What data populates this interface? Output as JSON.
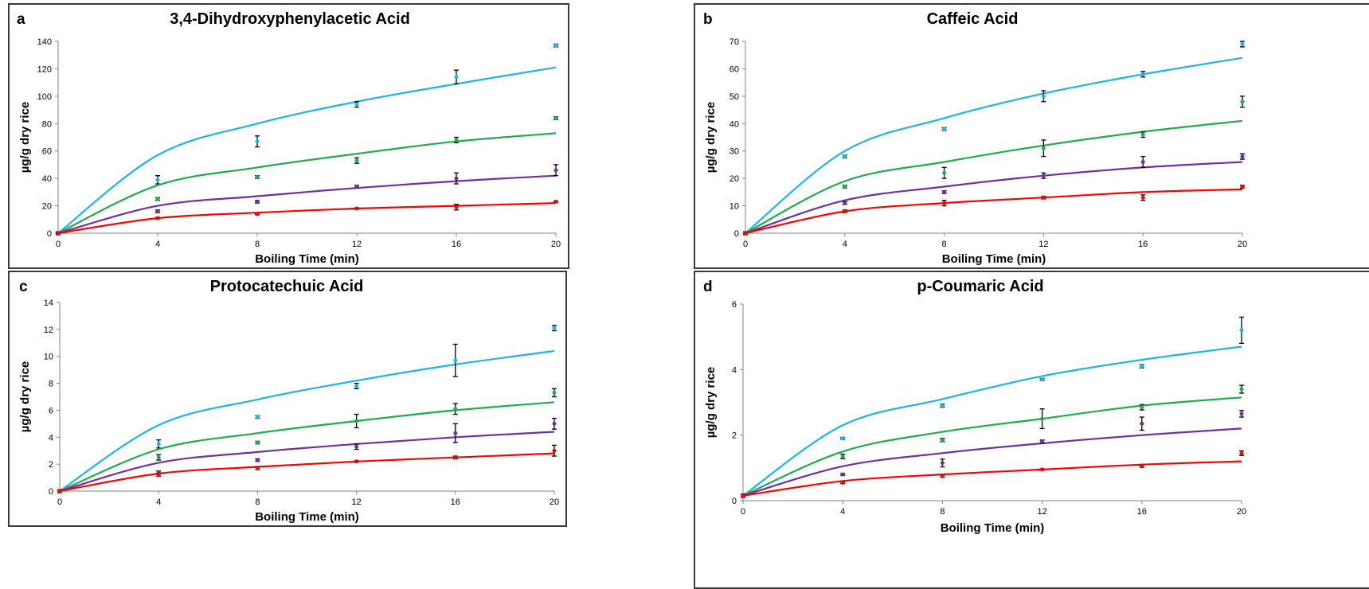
{
  "colors": {
    "blue": "#1fb4e6",
    "green": "#1fac4c",
    "purple": "#7030a0",
    "red": "#ff0000",
    "errorbar": "#000000"
  },
  "chart_data": [
    {
      "type": "line",
      "panel_letter": "a",
      "title": "3,4-Dihydroxyphenylacetic Acid",
      "xlabel": "Boiling Time (min)",
      "ylabel": "µg/g dry rice",
      "xlim": [
        0,
        20
      ],
      "ylim": [
        0,
        140
      ],
      "xticks": [
        0,
        4,
        8,
        12,
        16,
        20
      ],
      "yticks": [
        0,
        20,
        40,
        60,
        80,
        100,
        120,
        140
      ],
      "x": [
        0,
        4,
        8,
        12,
        16,
        20
      ],
      "series": [
        {
          "color": "blue",
          "points": [
            0,
            39,
            67,
            94,
            114,
            137
          ],
          "errors": [
            1,
            3,
            4,
            2,
            5,
            1
          ],
          "fit": [
            0,
            57,
            80,
            96,
            109,
            121
          ]
        },
        {
          "color": "green",
          "points": [
            0,
            25,
            41,
            53,
            68,
            84
          ],
          "errors": [
            1,
            1,
            1,
            2,
            2,
            1
          ],
          "fit": [
            0,
            35,
            48,
            58,
            67,
            73
          ]
        },
        {
          "color": "purple",
          "points": [
            0,
            16,
            23,
            34,
            40,
            46
          ],
          "errors": [
            1,
            1,
            1,
            1,
            4,
            4
          ],
          "fit": [
            0,
            20,
            27,
            33,
            38,
            42
          ]
        },
        {
          "color": "red",
          "points": [
            0,
            11,
            14,
            18,
            19,
            23
          ],
          "errors": [
            0.5,
            0.5,
            0.5,
            0.5,
            2,
            0.5
          ],
          "fit": [
            0,
            11,
            15,
            18,
            20,
            22
          ]
        }
      ]
    },
    {
      "type": "line",
      "panel_letter": "b",
      "title": "Caffeic Acid",
      "xlabel": "Boiling Time (min)",
      "ylabel": "µg/g dry rice",
      "xlim": [
        0,
        20
      ],
      "ylim": [
        0,
        70
      ],
      "xticks": [
        0,
        4,
        8,
        12,
        16,
        20
      ],
      "yticks": [
        0,
        10,
        20,
        30,
        40,
        50,
        60,
        70
      ],
      "x": [
        0,
        4,
        8,
        12,
        16,
        20
      ],
      "series": [
        {
          "color": "blue",
          "points": [
            0,
            28,
            38,
            50,
            58,
            69
          ],
          "errors": [
            0.5,
            0.5,
            0.5,
            2,
            1,
            1
          ],
          "fit": [
            0,
            30,
            42,
            51,
            58,
            64
          ]
        },
        {
          "color": "green",
          "points": [
            0,
            17,
            22,
            31,
            36,
            48
          ],
          "errors": [
            0.5,
            0.5,
            2,
            3,
            1,
            2
          ],
          "fit": [
            0,
            19,
            26,
            32,
            37,
            41
          ]
        },
        {
          "color": "purple",
          "points": [
            0,
            11,
            15,
            21,
            26,
            28
          ],
          "errors": [
            0.5,
            0.5,
            0.5,
            1,
            2,
            1
          ],
          "fit": [
            0,
            12,
            17,
            21,
            24,
            26
          ]
        },
        {
          "color": "red",
          "points": [
            0,
            8,
            11,
            13,
            13,
            17
          ],
          "errors": [
            0.5,
            0.5,
            1,
            0.5,
            1,
            0.5
          ],
          "fit": [
            0,
            8,
            11,
            13,
            15,
            16
          ]
        }
      ]
    },
    {
      "type": "line",
      "panel_letter": "c",
      "title": "Protocatechuic Acid",
      "xlabel": "Boiling Time (min)",
      "ylabel": "µg/g dry rice",
      "xlim": [
        0,
        20
      ],
      "ylim": [
        0,
        14
      ],
      "xticks": [
        0,
        4,
        8,
        12,
        16,
        20
      ],
      "yticks": [
        0,
        2,
        4,
        6,
        8,
        10,
        12,
        14
      ],
      "x": [
        0,
        4,
        8,
        12,
        16,
        20
      ],
      "series": [
        {
          "color": "blue",
          "points": [
            0,
            3.5,
            5.5,
            7.8,
            9.7,
            12.1
          ],
          "errors": [
            0.1,
            0.3,
            0.1,
            0.2,
            1.2,
            0.2
          ],
          "fit": [
            0,
            4.9,
            6.8,
            8.2,
            9.4,
            10.4
          ]
        },
        {
          "color": "green",
          "points": [
            0,
            2.5,
            3.6,
            5.2,
            6.1,
            7.3
          ],
          "errors": [
            0.1,
            0.2,
            0.1,
            0.5,
            0.4,
            0.3
          ],
          "fit": [
            0,
            3.1,
            4.3,
            5.2,
            6.0,
            6.6
          ]
        },
        {
          "color": "purple",
          "points": [
            0,
            1.4,
            2.3,
            3.3,
            4.3,
            5.0
          ],
          "errors": [
            0.1,
            0.1,
            0.1,
            0.2,
            0.7,
            0.4
          ],
          "fit": [
            0,
            2.1,
            2.9,
            3.5,
            4.0,
            4.4
          ]
        },
        {
          "color": "red",
          "points": [
            0,
            1.2,
            1.7,
            2.2,
            2.5,
            3.0
          ],
          "errors": [
            0.1,
            0.1,
            0.1,
            0.05,
            0.1,
            0.4
          ],
          "fit": [
            0,
            1.3,
            1.8,
            2.2,
            2.5,
            2.8
          ]
        }
      ]
    },
    {
      "type": "line",
      "panel_letter": "d",
      "title": "p-Coumaric Acid",
      "xlabel": "Boiling Time (min)",
      "ylabel": "µg/g dry rice",
      "xlim": [
        0,
        20
      ],
      "ylim": [
        0,
        6
      ],
      "xticks": [
        0,
        4,
        8,
        12,
        16,
        20
      ],
      "yticks": [
        0,
        2,
        4,
        6
      ],
      "x": [
        0,
        4,
        8,
        12,
        16,
        20
      ],
      "series": [
        {
          "color": "blue",
          "points": [
            0.15,
            1.9,
            2.9,
            3.7,
            4.1,
            5.2
          ],
          "errors": [
            0.05,
            0.03,
            0.05,
            0.03,
            0.05,
            0.4
          ],
          "fit": [
            0.15,
            2.3,
            3.1,
            3.8,
            4.3,
            4.7
          ]
        },
        {
          "color": "green",
          "points": [
            0.15,
            1.35,
            1.85,
            2.5,
            2.85,
            3.4
          ],
          "errors": [
            0.05,
            0.07,
            0.05,
            0.3,
            0.08,
            0.12
          ],
          "fit": [
            0.15,
            1.5,
            2.1,
            2.5,
            2.9,
            3.15
          ]
        },
        {
          "color": "purple",
          "points": [
            0.15,
            0.8,
            1.15,
            1.8,
            2.35,
            2.65
          ],
          "errors": [
            0.05,
            0.03,
            0.12,
            0.05,
            0.2,
            0.1
          ],
          "fit": [
            0.15,
            1.05,
            1.45,
            1.75,
            2.0,
            2.2
          ]
        },
        {
          "color": "red",
          "points": [
            0.15,
            0.55,
            0.75,
            0.95,
            1.05,
            1.45
          ],
          "errors": [
            0.05,
            0.03,
            0.04,
            0.02,
            0.03,
            0.07
          ],
          "fit": [
            0.15,
            0.6,
            0.8,
            0.95,
            1.1,
            1.2
          ]
        }
      ]
    }
  ]
}
